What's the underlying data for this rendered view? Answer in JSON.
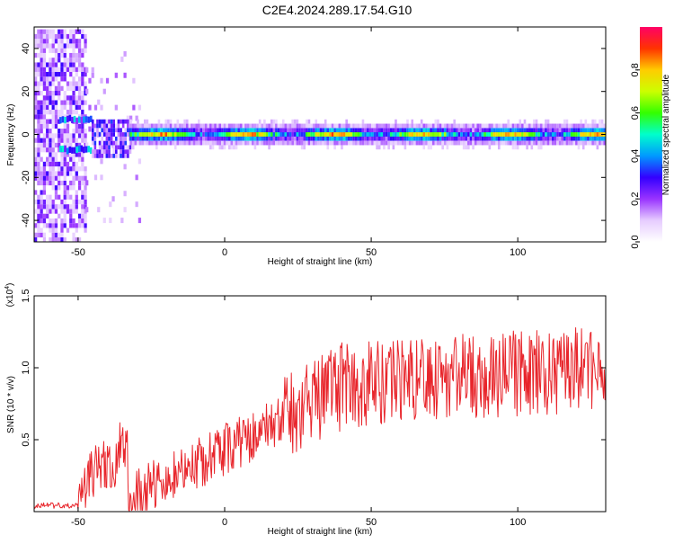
{
  "title": "C2E4.2024.289.17.54.G10",
  "chart_data": [
    {
      "type": "heatmap",
      "xlabel": "Height of straight line (km)",
      "ylabel": "Frequency (Hz)",
      "xlim": [
        -65,
        130
      ],
      "ylim": [
        -50,
        50
      ],
      "xticks": [
        "-50",
        "0",
        "50",
        "100"
      ],
      "yticks": [
        "40",
        "20",
        "0",
        "-20",
        "-40"
      ],
      "colorbar": {
        "label": "Normalized spectral amplitude",
        "range": [
          0,
          1
        ],
        "ticks": [
          "0.0",
          "0.2",
          "0.4",
          "0.6",
          "0.8"
        ],
        "colors": [
          "#ffffff",
          "#e6ccff",
          "#9933ff",
          "#3300ff",
          "#0099ff",
          "#00ffcc",
          "#33ff00",
          "#ccff00",
          "#ffcc00",
          "#ff3300",
          "#ff0066"
        ]
      },
      "grid": false
    },
    {
      "type": "line",
      "xlabel": "Height of straight line (km)",
      "ylabel": "SNR (10 * v/v)",
      "scale_note": "(x10",
      "scale_exp": "4",
      "scale_close": ")",
      "xlim": [
        -65,
        130
      ],
      "ylim": [
        0,
        1.5
      ],
      "xticks": [
        "-50",
        "0",
        "50",
        "100"
      ],
      "yticks": [
        "1.5",
        "1.0",
        "0.5"
      ],
      "series": [
        {
          "color": "#e8252b"
        }
      ],
      "grid": false
    }
  ]
}
